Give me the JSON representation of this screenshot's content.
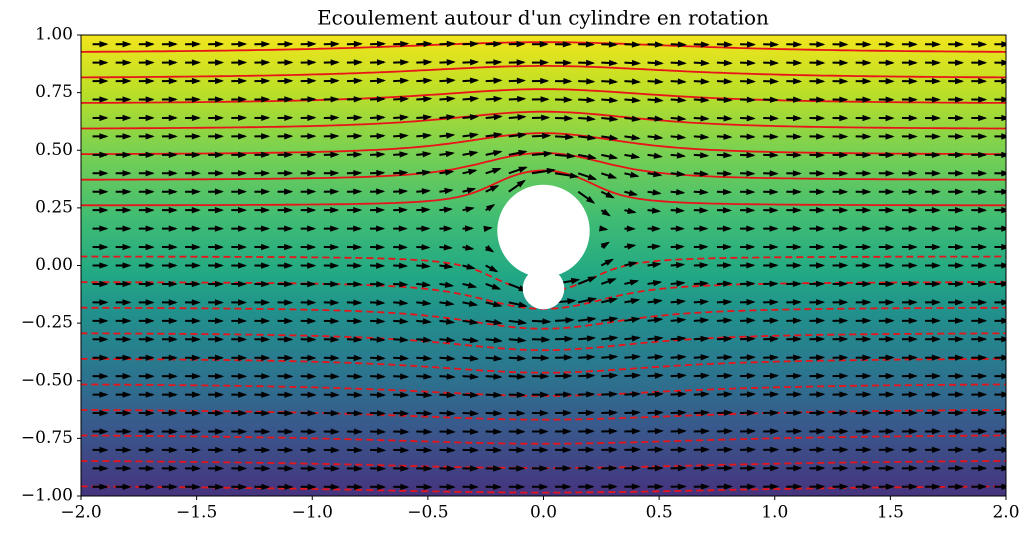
{
  "chart_data": {
    "type": "flow",
    "title": "Ecoulement autour d'un cylindre en rotation",
    "xlim": [
      -2,
      2
    ],
    "ylim": [
      -1,
      1
    ],
    "xticks": [
      {
        "value": -2,
        "label": "−2.0"
      },
      {
        "value": -1.5,
        "label": "−1.5"
      },
      {
        "value": -1,
        "label": "−1.0"
      },
      {
        "value": -0.5,
        "label": "−0.5"
      },
      {
        "value": 0,
        "label": "0.0"
      },
      0.5,
      {
        "value": 1,
        "label": "1.0"
      },
      1.5,
      {
        "value": 2,
        "label": "2.0"
      }
    ],
    "yticks": [
      {
        "value": -1,
        "label": "−1.00"
      },
      {
        "value": -0.75,
        "label": "−0.75"
      },
      {
        "value": -0.5,
        "label": "−0.50"
      },
      {
        "value": -0.25,
        "label": "−0.25"
      },
      {
        "value": 0,
        "label": "0.00"
      },
      0.25,
      {
        "value": 0.5,
        "label": "0.50"
      },
      0.75,
      {
        "value": 1,
        "label": "1.00"
      }
    ]
  }
}
